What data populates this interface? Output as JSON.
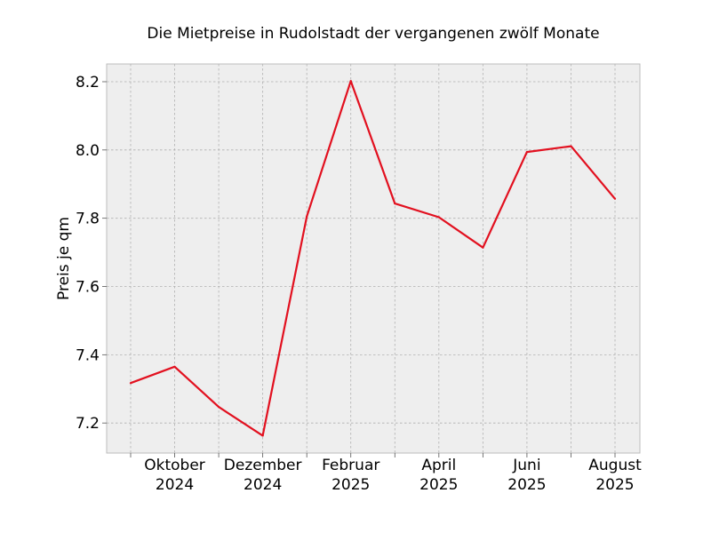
{
  "chart_data": {
    "type": "line",
    "title": "Die Mietpreise in Rudolstadt der vergangenen zwölf Monate",
    "xlabel": "",
    "ylabel": "Preis je qm",
    "x": [
      "2024-09",
      "2024-10",
      "2024-11",
      "2024-12",
      "2025-01",
      "2025-02",
      "2025-03",
      "2025-04",
      "2025-05",
      "2025-06",
      "2025-07",
      "2025-08"
    ],
    "series": [
      {
        "values": [
          7.317,
          7.365,
          7.247,
          7.163,
          7.805,
          8.202,
          7.843,
          7.803,
          7.714,
          7.994,
          8.011,
          7.857
        ],
        "color": "#e2101f"
      }
    ],
    "ylim": [
      7.112,
      8.252
    ],
    "yticks": [
      {
        "value": 7.2,
        "label": "7.2"
      },
      {
        "value": 7.4,
        "label": "7.4"
      },
      {
        "value": 7.6,
        "label": "7.6"
      },
      {
        "value": 7.8,
        "label": "7.8"
      },
      {
        "value": 8.0,
        "label": "8.0"
      },
      {
        "value": 8.2,
        "label": "8.2"
      }
    ],
    "xticks": [
      {
        "index": 1,
        "line1": "Oktober",
        "line2": "2024"
      },
      {
        "index": 3,
        "line1": "Dezember",
        "line2": "2024"
      },
      {
        "index": 5,
        "line1": "Februar",
        "line2": "2025"
      },
      {
        "index": 7,
        "line1": "April",
        "line2": "2025"
      },
      {
        "index": 9,
        "line1": "Juni",
        "line2": "2025"
      },
      {
        "index": 11,
        "line1": "August",
        "line2": "2025"
      }
    ],
    "grid": true,
    "colors": {
      "plot_background": "#eeeeee",
      "grid": "#b0b0b0",
      "axes_edge": "#bcbcbc"
    }
  }
}
